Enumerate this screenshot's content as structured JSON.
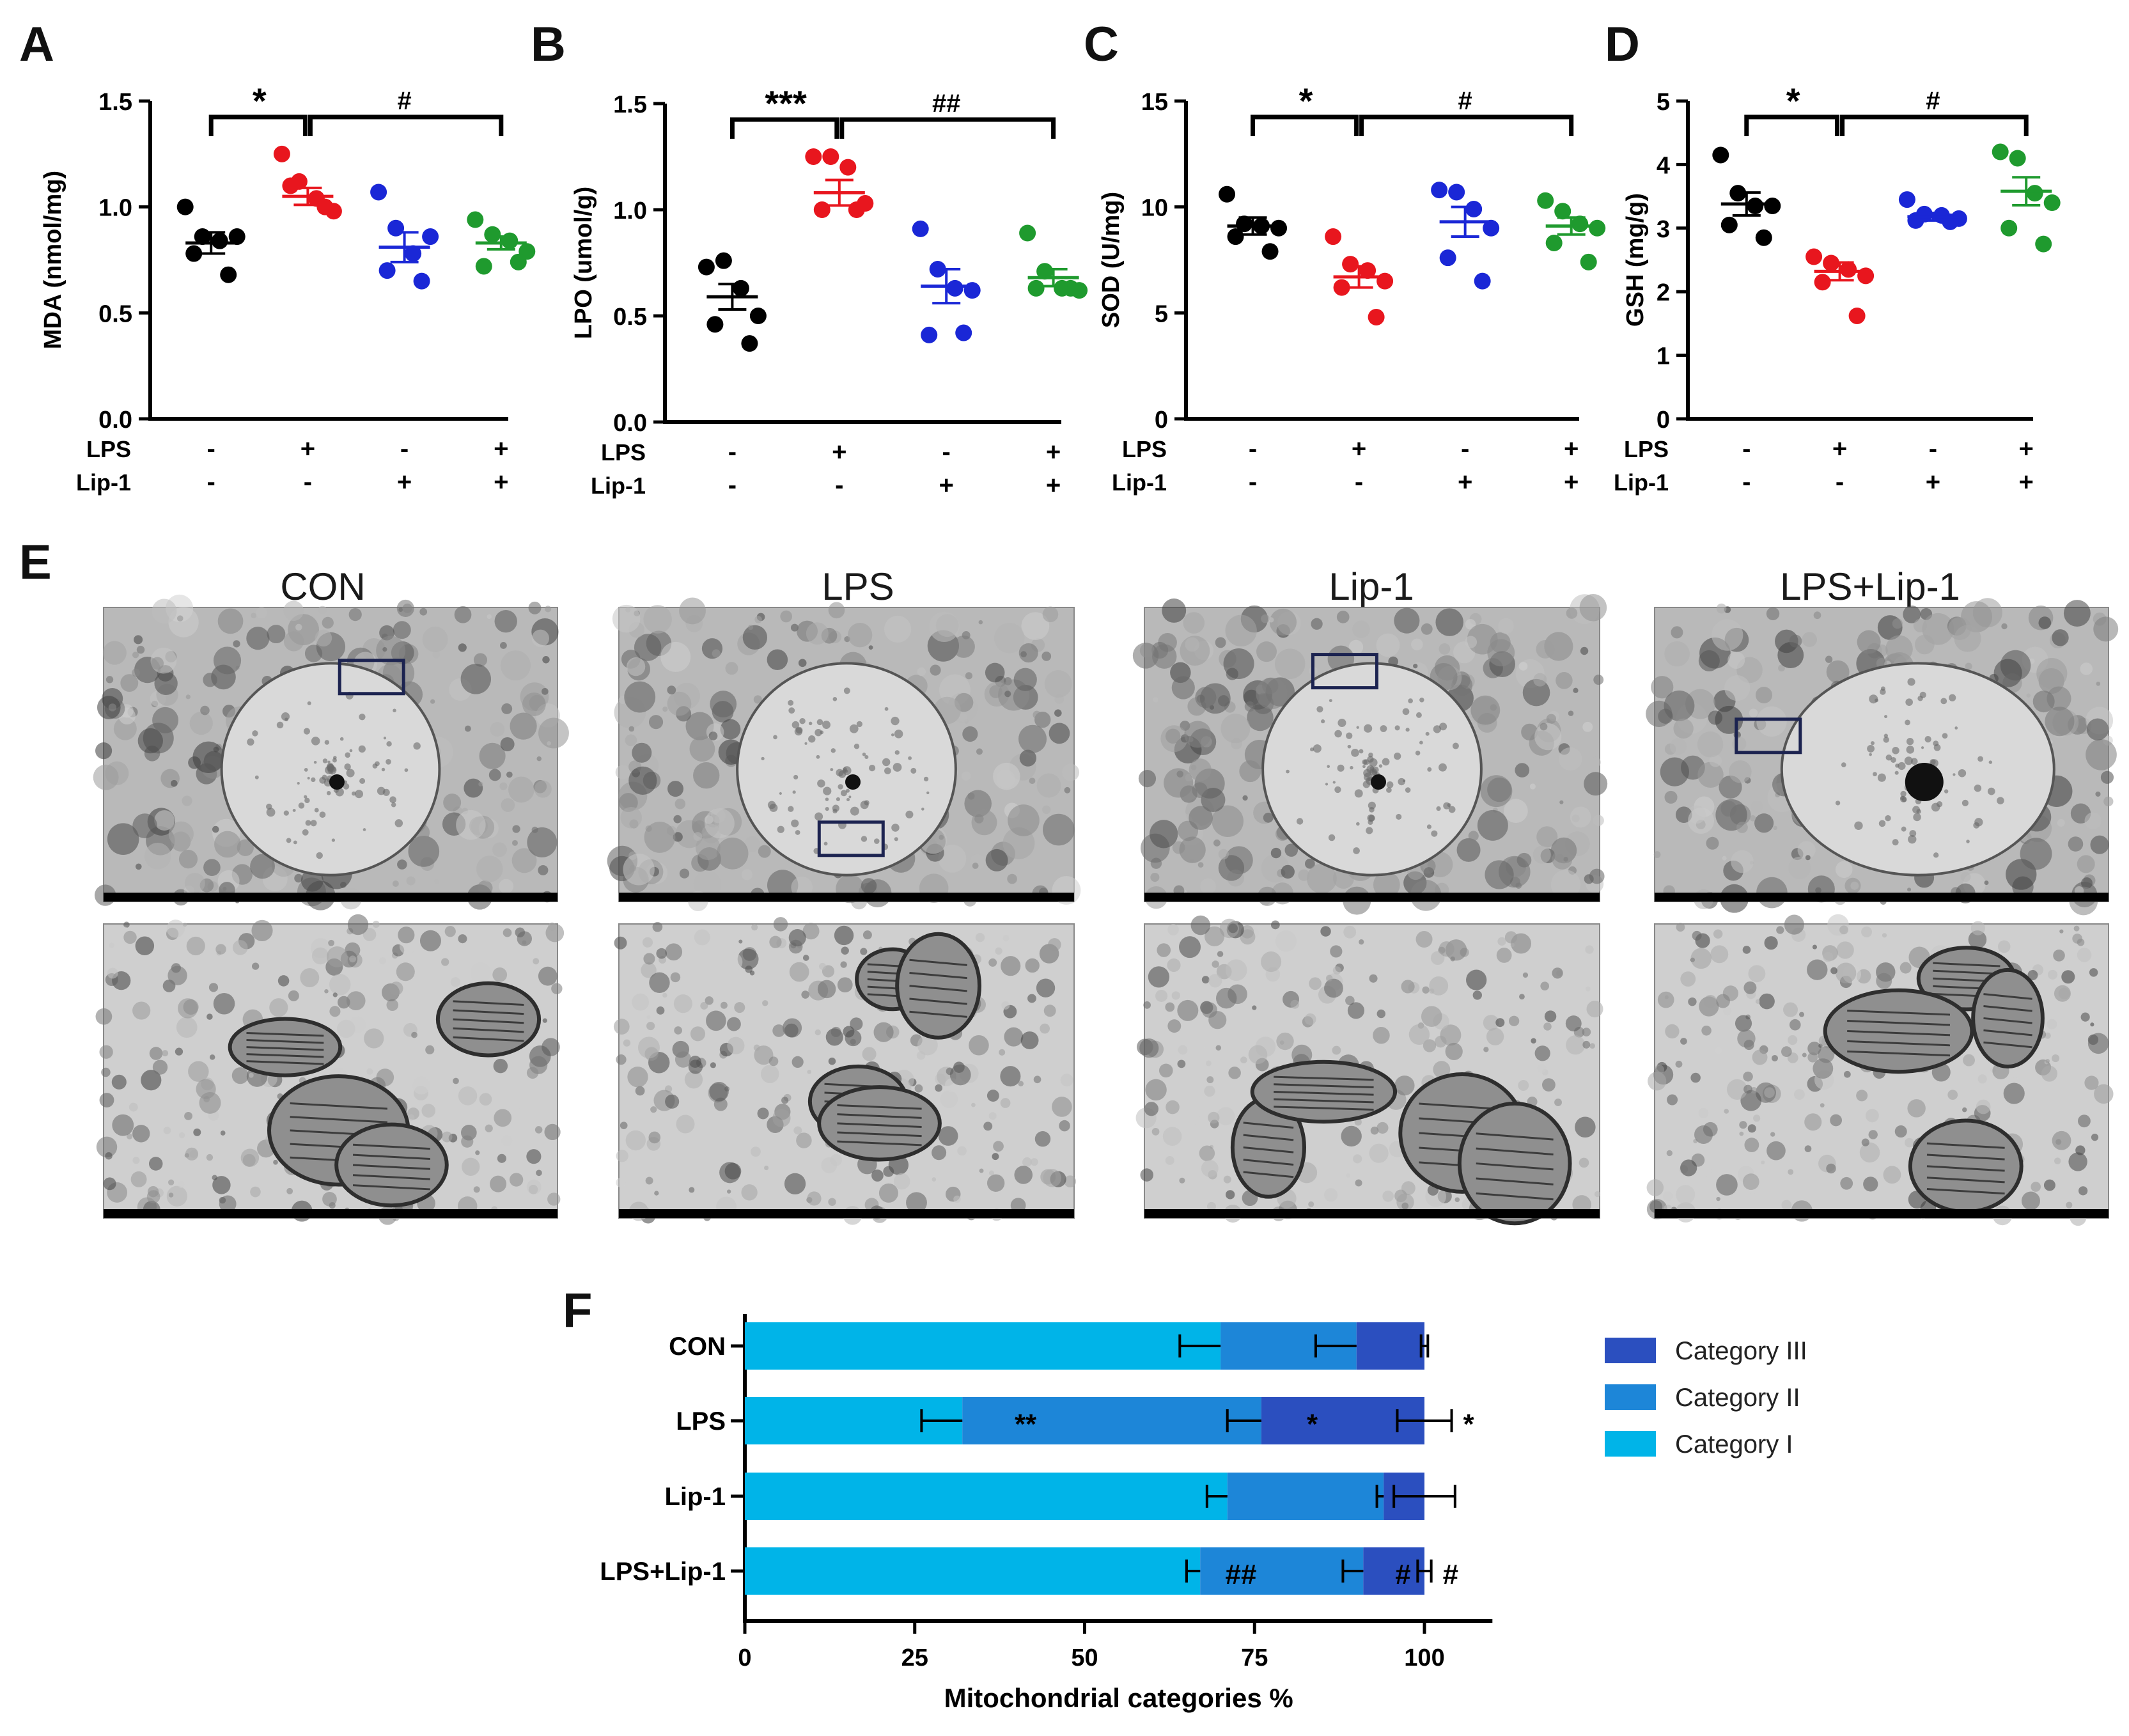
{
  "panel_letters": [
    "A",
    "B",
    "C",
    "D",
    "E",
    "F"
  ],
  "colors": {
    "con": "#000000",
    "lps": "#e8161e",
    "lip1": "#1a27d6",
    "lps_lip1": "#1f9a2e",
    "cat1": "#00b4e8",
    "cat2": "#1d86d8",
    "cat3": "#2b4fbf",
    "axis": "#000000"
  },
  "group_rows": {
    "lps_label": "LPS",
    "lip_label": "Lip-1",
    "lps_signs": [
      "-",
      "+",
      "-",
      "+"
    ],
    "lip_signs": [
      "-",
      "-",
      "+",
      "+"
    ]
  },
  "chart_data": [
    {
      "type": "scatter",
      "panel": "A",
      "ylabel": "MDA (nmol/mg)",
      "ylim": [
        0,
        1.5
      ],
      "yticks": [
        "0.0",
        "0.5",
        "1.0",
        "1.5"
      ],
      "ytick_values": [
        0,
        0.5,
        1.0,
        1.5
      ],
      "groups": [
        "CON",
        "LPS",
        "Lip-1",
        "LPS+Lip-1"
      ],
      "points": [
        [
          1.0,
          0.86,
          0.84,
          0.86,
          0.78,
          0.68
        ],
        [
          1.25,
          1.12,
          1.04,
          0.98,
          1.1,
          1.0
        ],
        [
          1.07,
          0.9,
          0.78,
          0.86,
          0.7,
          0.65
        ],
        [
          0.94,
          0.87,
          0.84,
          0.79,
          0.72,
          0.74
        ]
      ],
      "mean": [
        0.83,
        1.05,
        0.81,
        0.83
      ],
      "sem": [
        0.05,
        0.04,
        0.07,
        0.03
      ],
      "sig_left": "*",
      "sig_right": "#"
    },
    {
      "type": "scatter",
      "panel": "B",
      "ylabel": "LPO (umol/g)",
      "ylim": [
        0,
        1.5
      ],
      "yticks": [
        "0.0",
        "0.5",
        "1.0",
        "1.5"
      ],
      "ytick_values": [
        0,
        0.5,
        1.0,
        1.5
      ],
      "groups": [
        "CON",
        "LPS",
        "Lip-1",
        "LPS+Lip-1"
      ],
      "points": [
        [
          0.73,
          0.76,
          0.63,
          0.5,
          0.46,
          0.37
        ],
        [
          1.25,
          1.25,
          1.2,
          1.03,
          1.0,
          1.0
        ],
        [
          0.91,
          0.72,
          0.63,
          0.62,
          0.41,
          0.42
        ],
        [
          0.89,
          0.71,
          0.63,
          0.62,
          0.63,
          0.63
        ]
      ],
      "mean": [
        0.59,
        1.08,
        0.64,
        0.68
      ],
      "sem": [
        0.06,
        0.06,
        0.08,
        0.04
      ],
      "sig_left": "***",
      "sig_right": "##"
    },
    {
      "type": "scatter",
      "panel": "C",
      "ylabel": "SOD (U/mg)",
      "ylim": [
        0,
        15
      ],
      "yticks": [
        "0",
        "5",
        "10",
        "15"
      ],
      "ytick_values": [
        0,
        5,
        10,
        15
      ],
      "groups": [
        "CON",
        "LPS",
        "Lip-1",
        "LPS+Lip-1"
      ],
      "points": [
        [
          10.6,
          9.2,
          9.1,
          9.0,
          8.6,
          7.9
        ],
        [
          8.6,
          7.3,
          7.0,
          6.5,
          6.2,
          4.8
        ],
        [
          10.8,
          10.7,
          9.9,
          9.0,
          7.6,
          6.5
        ],
        [
          10.3,
          9.8,
          9.2,
          9.0,
          8.3,
          7.4
        ]
      ],
      "mean": [
        9.1,
        6.7,
        9.3,
        9.1
      ],
      "sem": [
        0.4,
        0.5,
        0.7,
        0.4
      ],
      "sig_left": "*",
      "sig_right": "#"
    },
    {
      "type": "scatter",
      "panel": "D",
      "ylabel": "GSH (mg/g)",
      "ylim": [
        0,
        5
      ],
      "yticks": [
        "0",
        "1",
        "2",
        "3",
        "4",
        "5"
      ],
      "ytick_values": [
        0,
        1,
        2,
        3,
        4,
        5
      ],
      "groups": [
        "CON",
        "LPS",
        "Lip-1",
        "LPS+Lip-1"
      ],
      "points": [
        [
          4.15,
          3.55,
          3.35,
          3.35,
          3.05,
          2.85
        ],
        [
          2.55,
          2.45,
          2.35,
          2.25,
          2.15,
          1.62
        ],
        [
          3.45,
          3.22,
          3.2,
          3.15,
          3.12,
          3.1
        ],
        [
          4.2,
          4.1,
          3.55,
          3.4,
          3.0,
          2.75
        ]
      ],
      "mean": [
        3.38,
        2.32,
        3.18,
        3.58
      ],
      "sem": [
        0.18,
        0.14,
        0.06,
        0.22
      ],
      "sig_left": "*",
      "sig_right": "#"
    },
    {
      "type": "stacked-bar-horizontal",
      "panel": "F",
      "xlabel": "Mitochondrial categories %",
      "xlim": [
        0,
        110
      ],
      "xticks": [
        "0",
        "25",
        "50",
        "75",
        "100"
      ],
      "xtick_values": [
        0,
        25,
        50,
        75,
        100
      ],
      "categories": [
        "CON",
        "LPS",
        "Lip-1",
        "LPS+Lip-1"
      ],
      "series": [
        {
          "name": "Category I",
          "values": [
            70,
            32,
            71,
            67
          ],
          "err": [
            6,
            6,
            3,
            2
          ]
        },
        {
          "name": "Category II",
          "values": [
            20,
            44,
            23,
            24
          ],
          "err": [
            6,
            5,
            1,
            3
          ]
        },
        {
          "name": "Category III",
          "values": [
            10,
            24,
            6,
            9
          ],
          "err": [
            0.5,
            4,
            4.5,
            1
          ]
        }
      ],
      "legend": [
        "Category III",
        "Category II",
        "Category I"
      ],
      "annotations": [
        {
          "category": "LPS",
          "series": "Category I",
          "text": "**"
        },
        {
          "category": "LPS",
          "series": "Category II",
          "text": "*"
        },
        {
          "category": "LPS",
          "series": "Category III",
          "text": "*"
        },
        {
          "category": "LPS+Lip-1",
          "series": "Category I",
          "text": "##"
        },
        {
          "category": "LPS+Lip-1",
          "series": "Category II",
          "text": "#"
        },
        {
          "category": "LPS+Lip-1",
          "series": "Category III",
          "text": "#"
        }
      ]
    }
  ],
  "em": {
    "columns": [
      "CON",
      "LPS",
      "Lip-1",
      "LPS+Lip-1"
    ]
  }
}
